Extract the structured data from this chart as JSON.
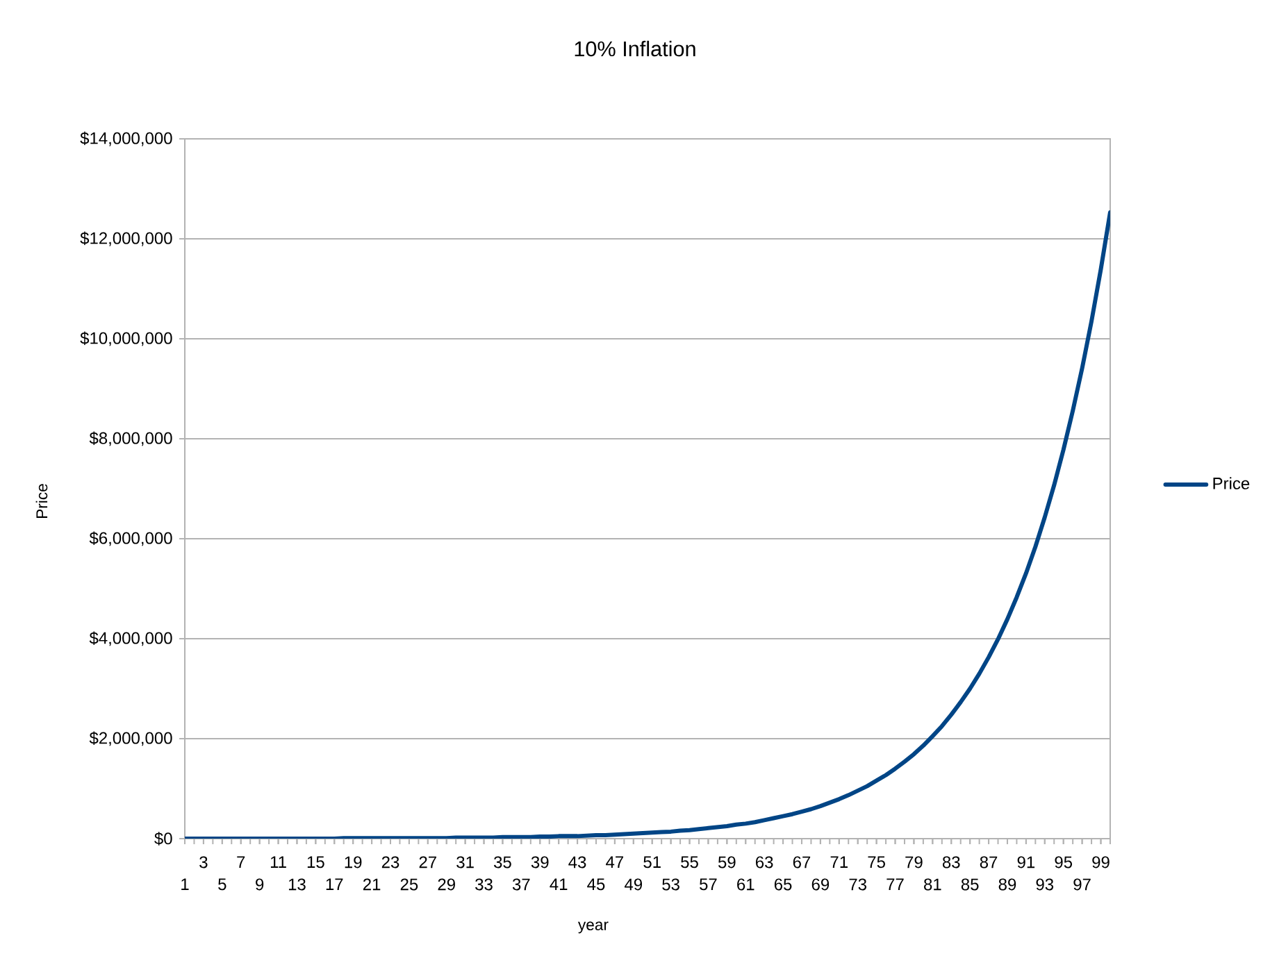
{
  "chart_data": {
    "type": "line",
    "title": "10% Inflation",
    "xlabel": "year",
    "ylabel": "Price",
    "categories": [
      "1",
      null,
      "3",
      null,
      "5",
      null,
      "7",
      null,
      "9",
      null,
      "11",
      null,
      "13",
      null,
      "15",
      null,
      "17",
      null,
      "19",
      null,
      "21",
      null,
      "23",
      null,
      "25",
      null,
      "27",
      null,
      "29",
      null,
      "31",
      null,
      "33",
      null,
      "35",
      null,
      "37",
      null,
      "39",
      null,
      "41",
      null,
      "43",
      null,
      "45",
      null,
      "47",
      null,
      "49",
      null,
      "51",
      null,
      "53",
      null,
      "55",
      null,
      "57",
      null,
      "59",
      null,
      "61",
      null,
      "63",
      null,
      "65",
      null,
      "67",
      null,
      "69",
      null,
      "71",
      null,
      "73",
      null,
      "75",
      null,
      "77",
      null,
      "79",
      null,
      "81",
      null,
      "83",
      null,
      "85",
      null,
      "87",
      null,
      "89",
      null,
      "91",
      null,
      "93",
      null,
      "95",
      null,
      "97",
      null,
      "99",
      null
    ],
    "series": [
      {
        "name": "Price",
        "color": "#004586",
        "values": [
          0,
          0,
          0,
          0,
          0,
          0,
          0,
          0,
          0,
          0,
          0,
          0,
          0,
          0,
          0,
          0,
          0,
          10000,
          10000,
          10000,
          10000,
          10000,
          10000,
          10000,
          10000,
          10000,
          10000,
          10000,
          10000,
          20000,
          20000,
          20000,
          20000,
          20000,
          30000,
          30000,
          30000,
          30000,
          40000,
          40000,
          50000,
          50000,
          50000,
          60000,
          70000,
          70000,
          80000,
          90000,
          100000,
          110000,
          120000,
          130000,
          140000,
          160000,
          170000,
          190000,
          210000,
          230000,
          250000,
          280000,
          300000,
          330000,
          370000,
          410000,
          450000,
          490000,
          540000,
          590000,
          650000,
          720000,
          790000,
          870000,
          960000,
          1050000,
          1160000,
          1270000,
          1400000,
          1540000,
          1690000,
          1860000,
          2050000,
          2250000,
          2480000,
          2730000,
          3000000,
          3300000,
          3630000,
          3990000,
          4390000,
          4830000,
          5310000,
          5840000,
          6430000,
          7070000,
          7780000,
          8560000,
          9410000,
          10350000,
          11390000,
          12530000
        ]
      }
    ],
    "ylim": [
      0,
      14000000
    ],
    "yticks": [
      {
        "value": 0,
        "label": "$0"
      },
      {
        "value": 2000000,
        "label": "$2,000,000"
      },
      {
        "value": 4000000,
        "label": "$4,000,000"
      },
      {
        "value": 6000000,
        "label": "$6,000,000"
      },
      {
        "value": 8000000,
        "label": "$8,000,000"
      },
      {
        "value": 10000000,
        "label": "$10,000,000"
      },
      {
        "value": 12000000,
        "label": "$12,000,000"
      },
      {
        "value": 14000000,
        "label": "$14,000,000"
      }
    ],
    "grid": "y",
    "legend": "right",
    "marker": "none",
    "line_style": "solid"
  }
}
